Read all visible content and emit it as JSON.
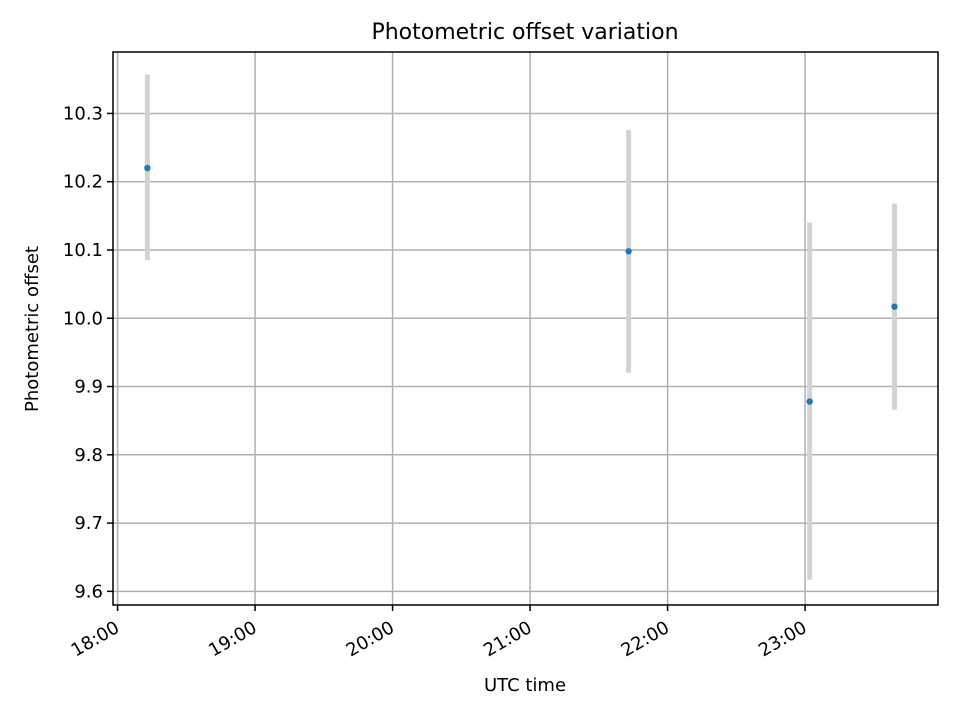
{
  "chart_data": {
    "type": "scatter",
    "title": "Photometric offset variation",
    "xlabel": "UTC time",
    "ylabel": "Photometric offset",
    "x_axis": {
      "type": "time",
      "range": [
        "17:58",
        "23:58"
      ],
      "ticks": [
        "18:00",
        "19:00",
        "20:00",
        "21:00",
        "22:00",
        "23:00"
      ]
    },
    "y_axis": {
      "range": [
        9.58,
        10.39
      ],
      "ticks": [
        9.6,
        9.7,
        9.8,
        9.9,
        10.0,
        10.1,
        10.2,
        10.3
      ],
      "tick_labels": [
        "9.6",
        "9.7",
        "9.8",
        "9.9",
        "10.0",
        "10.1",
        "10.2",
        "10.3"
      ]
    },
    "grid": true,
    "points": [
      {
        "x": "18:13",
        "y": 10.22,
        "ylow": 10.085,
        "yhigh": 10.357
      },
      {
        "x": "21:43",
        "y": 10.098,
        "ylow": 9.92,
        "yhigh": 10.276
      },
      {
        "x": "23:02",
        "y": 9.878,
        "ylow": 9.617,
        "yhigh": 10.14
      },
      {
        "x": "23:39",
        "y": 10.017,
        "ylow": 9.866,
        "yhigh": 10.168
      }
    ],
    "colors": {
      "marker": "#1f77b4",
      "errorbar": "#d3d3d3"
    }
  }
}
